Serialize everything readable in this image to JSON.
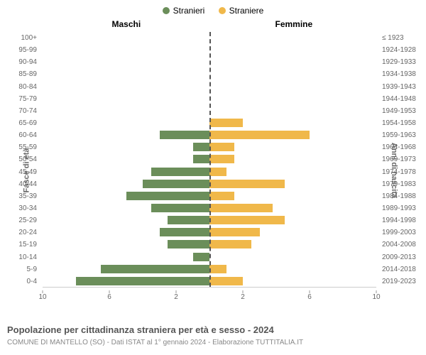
{
  "chart": {
    "type": "population-pyramid",
    "legend": {
      "male": {
        "label": "Stranieri",
        "color": "#6b8e5a"
      },
      "female": {
        "label": "Straniere",
        "color": "#f0b84a"
      }
    },
    "headers": {
      "left": "Maschi",
      "right": "Femmine"
    },
    "axis_title_left": "Fasce di età",
    "axis_title_right": "Anni di nascita",
    "x_max": 10,
    "x_ticks": [
      10,
      6,
      2,
      2,
      6,
      10
    ],
    "center_line_color": "#555555",
    "background_color": "#ffffff",
    "rows": [
      {
        "age": "100+",
        "birth": "≤ 1923",
        "m": 0,
        "f": 0
      },
      {
        "age": "95-99",
        "birth": "1924-1928",
        "m": 0,
        "f": 0
      },
      {
        "age": "90-94",
        "birth": "1929-1933",
        "m": 0,
        "f": 0
      },
      {
        "age": "85-89",
        "birth": "1934-1938",
        "m": 0,
        "f": 0
      },
      {
        "age": "80-84",
        "birth": "1939-1943",
        "m": 0,
        "f": 0
      },
      {
        "age": "75-79",
        "birth": "1944-1948",
        "m": 0,
        "f": 0
      },
      {
        "age": "70-74",
        "birth": "1949-1953",
        "m": 0,
        "f": 0
      },
      {
        "age": "65-69",
        "birth": "1954-1958",
        "m": 0,
        "f": 2
      },
      {
        "age": "60-64",
        "birth": "1959-1963",
        "m": 3,
        "f": 6
      },
      {
        "age": "55-59",
        "birth": "1964-1968",
        "m": 1,
        "f": 1.5
      },
      {
        "age": "50-54",
        "birth": "1969-1973",
        "m": 1,
        "f": 1.5
      },
      {
        "age": "45-49",
        "birth": "1974-1978",
        "m": 3.5,
        "f": 1
      },
      {
        "age": "40-44",
        "birth": "1979-1983",
        "m": 4,
        "f": 4.5
      },
      {
        "age": "35-39",
        "birth": "1984-1988",
        "m": 5,
        "f": 1.5
      },
      {
        "age": "30-34",
        "birth": "1989-1993",
        "m": 3.5,
        "f": 3.8
      },
      {
        "age": "25-29",
        "birth": "1994-1998",
        "m": 2.5,
        "f": 4.5
      },
      {
        "age": "20-24",
        "birth": "1999-2003",
        "m": 3,
        "f": 3
      },
      {
        "age": "15-19",
        "birth": "2004-2008",
        "m": 2.5,
        "f": 2.5
      },
      {
        "age": "10-14",
        "birth": "2009-2013",
        "m": 1,
        "f": 0
      },
      {
        "age": "5-9",
        "birth": "2014-2018",
        "m": 6.5,
        "f": 1
      },
      {
        "age": "0-4",
        "birth": "2019-2023",
        "m": 8,
        "f": 2
      }
    ]
  },
  "title": "Popolazione per cittadinanza straniera per età e sesso - 2024",
  "subtitle": "COMUNE DI MANTELLO (SO) - Dati ISTAT al 1° gennaio 2024 - Elaborazione TUTTITALIA.IT"
}
